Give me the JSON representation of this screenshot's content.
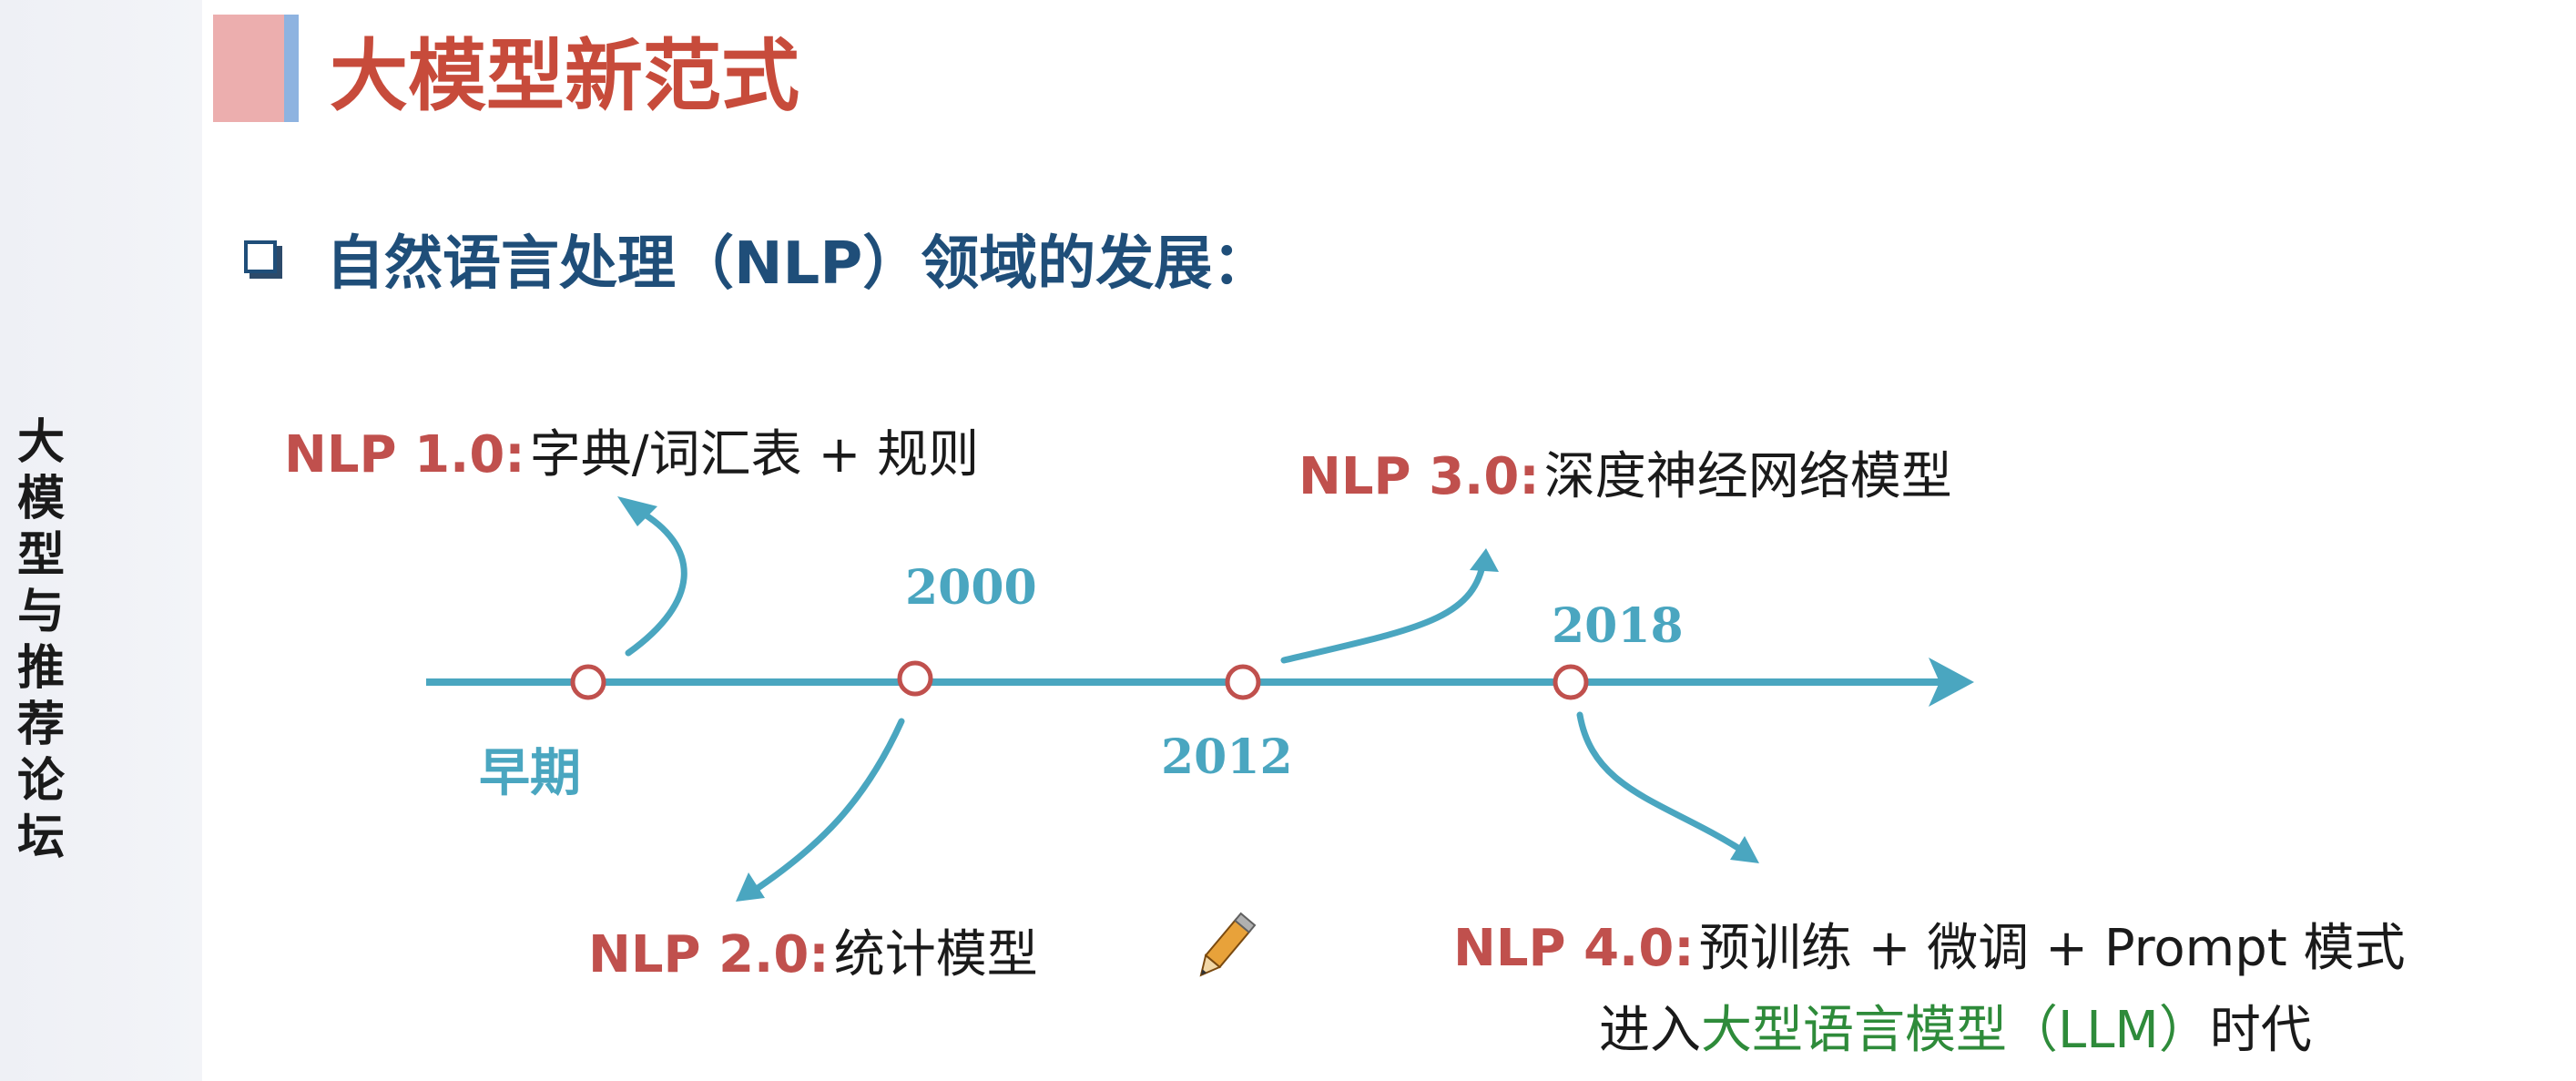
{
  "sidebar": {
    "text": "大模型与推荐 论坛"
  },
  "page": {
    "title": "大模型新范式"
  },
  "section": {
    "heading": "自然语言处理（NLP）领域的发展："
  },
  "timeline": {
    "early_label": "早期",
    "years": {
      "y2000": "2000",
      "y2012": "2012",
      "y2018": "2018"
    },
    "stages": [
      {
        "version": "NLP 1.0:",
        "description": "字典/词汇表 + 规则"
      },
      {
        "version": "NLP 2.0:",
        "description": "统计模型"
      },
      {
        "version": "NLP 3.0:",
        "description": "深度神经网络模型"
      },
      {
        "version": "NLP 4.0:",
        "description": "预训练 + 微调 + Prompt 模式",
        "line2_prefix": "进入",
        "line2_highlight": "大型语言模型（LLM）",
        "line2_suffix": "时代"
      }
    ]
  },
  "colors": {
    "title_red": "#c74b3b",
    "heading_blue": "#1f4e79",
    "version_red": "#c0504d",
    "timeline_teal": "#4aa6c0",
    "node_red": "#c0504d",
    "llm_green": "#2e8b3a",
    "sidebar_bg": "#eef0f5",
    "deco_pink": "#ecaeae",
    "deco_blue": "#8eb3e0"
  },
  "icons": {
    "pencil": "pencil-icon",
    "bullet": "checkbox-bullet-icon"
  }
}
